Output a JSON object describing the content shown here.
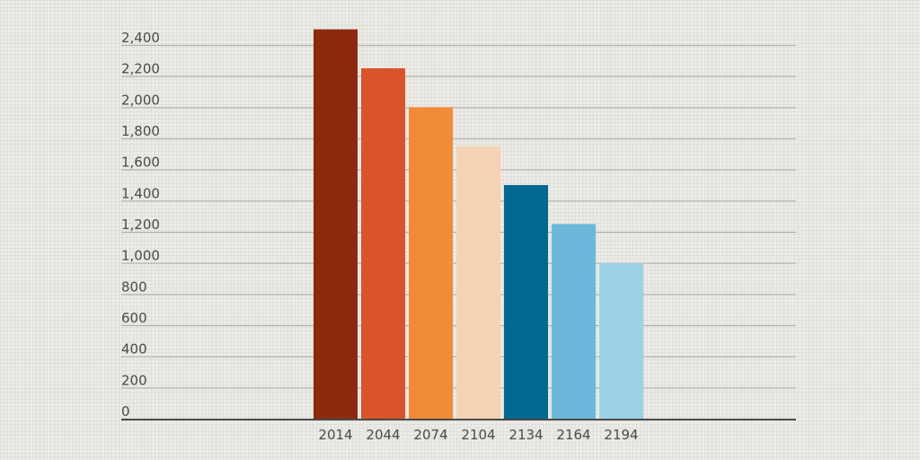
{
  "chart_data": {
    "type": "bar",
    "categories": [
      "2014",
      "2044",
      "2074",
      "2104",
      "2134",
      "2164",
      "2194"
    ],
    "values": [
      2500,
      2250,
      2000,
      1750,
      1500,
      1250,
      1000
    ],
    "ylim": [
      0,
      2400
    ],
    "y_ticks": [
      {
        "value": 0,
        "label": "0"
      },
      {
        "value": 200,
        "label": "200"
      },
      {
        "value": 400,
        "label": "400"
      },
      {
        "value": 600,
        "label": "600"
      },
      {
        "value": 800,
        "label": "800"
      },
      {
        "value": 1000,
        "label": "1,000"
      },
      {
        "value": 1200,
        "label": "1,200"
      },
      {
        "value": 1400,
        "label": "1,400"
      },
      {
        "value": 1600,
        "label": "1,600"
      },
      {
        "value": 1800,
        "label": "1,800"
      },
      {
        "value": 2000,
        "label": "2,000"
      },
      {
        "value": 2200,
        "label": "2,200"
      },
      {
        "value": 2400,
        "label": "2,400"
      }
    ],
    "grid": true,
    "legend": "none",
    "colors": [
      "#8b2a0e",
      "#d9532b",
      "#f28b38",
      "#f4d2b3",
      "#016891",
      "#6cb8db",
      "#9bd2e6"
    ],
    "gridline_color": "#a9a9a9",
    "baseline_color": "#4a4a4a"
  }
}
